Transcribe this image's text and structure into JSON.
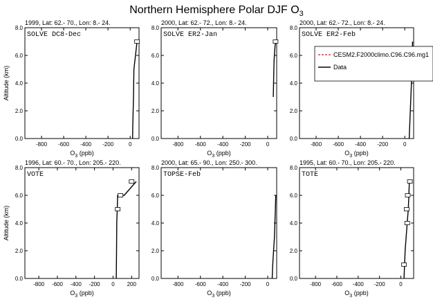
{
  "figure": {
    "title_main": "Northern Hemisphere Polar DJF O",
    "title_sub": "3"
  },
  "legend": {
    "model_label": "CESM2.F2000climo.C96.C96.mg1",
    "data_label": "Data",
    "model_color": "#ff0000",
    "data_color": "#000000"
  },
  "chart_data": [
    {
      "type": "line",
      "title": "1999, Lat: 62.- 70., Lon: 8.- 24.",
      "campaign": "SOLVE DC8-Dec",
      "xlabel_main": "O",
      "xlabel_sub": "3",
      "xlabel_unit": " (ppb)",
      "ylabel": "Altitude (km)",
      "xlim": [
        -950,
        80
      ],
      "ylim": [
        0,
        8
      ],
      "xticks": [
        "-800",
        "-600",
        "-400",
        "-200",
        "0"
      ],
      "yticks": [
        "0.0",
        "2.0",
        "4.0",
        "6.0",
        "8.0"
      ],
      "series": [
        {
          "x": [
            22,
            24,
            27,
            30,
            34,
            48,
            62
          ],
          "y": [
            0,
            1,
            2,
            3,
            5,
            6,
            7
          ]
        }
      ],
      "boxes": [
        {
          "x": 62,
          "y": 7
        }
      ]
    },
    {
      "type": "line",
      "title": "2000, Lat: 62.- 72., Lon: 8.- 24.",
      "campaign": "SOLVE ER2-Jan",
      "xlabel_main": "O",
      "xlabel_sub": "3",
      "xlabel_unit": " (ppb)",
      "ylabel": "",
      "xlim": [
        -950,
        80
      ],
      "ylim": [
        0,
        8
      ],
      "xticks": [
        "-800",
        "-600",
        "-400",
        "-200",
        "0"
      ],
      "yticks": [
        "0.0",
        "2.0",
        "4.0",
        "6.0",
        "8.0"
      ],
      "series": [
        {
          "x": [
            50,
            52,
            55,
            58,
            62,
            66,
            72
          ],
          "y": [
            3,
            4,
            5,
            5.8,
            6.3,
            6.7,
            7
          ]
        }
      ],
      "boxes": [
        {
          "x": 70,
          "y": 7
        }
      ]
    },
    {
      "type": "line",
      "title": "2000, Lat: 62.- 72., Lon: 8.- 24.",
      "campaign": "SOLVE ER2-Feb",
      "xlabel_main": "O",
      "xlabel_sub": "3",
      "xlabel_unit": " (ppb)",
      "ylabel": "",
      "xlim": [
        -950,
        80
      ],
      "ylim": [
        0,
        8
      ],
      "xticks": [
        "-800",
        "-600",
        "-400",
        "-200",
        "0"
      ],
      "yticks": [
        "0.0",
        "2.0",
        "4.0",
        "6.0",
        "8.0"
      ],
      "series": [
        {
          "x": [
            40,
            45,
            50,
            55,
            60,
            65,
            68,
            70
          ],
          "y": [
            0,
            1,
            2,
            3,
            4,
            5,
            6,
            7
          ]
        }
      ],
      "boxes": []
    },
    {
      "type": "line",
      "title": "1996, Lat: 60.- 70., Lon: 205.- 220.",
      "campaign": "VOTE",
      "xlabel_main": "O",
      "xlabel_sub": "3",
      "xlabel_unit": " (ppb)",
      "ylabel": "Altitude (km)",
      "xlim": [
        -950,
        280
      ],
      "ylim": [
        0,
        8
      ],
      "xticks": [
        "-800",
        "-600",
        "-400",
        "-200",
        "0",
        "200"
      ],
      "yticks": [
        "0.0",
        "2.0",
        "4.0",
        "6.0",
        "8.0"
      ],
      "series": [
        {
          "x": [
            35,
            38,
            40,
            45,
            50,
            120,
            250,
            250
          ],
          "y": [
            0,
            2,
            4,
            5,
            6,
            6,
            7,
            7
          ]
        }
      ],
      "boxes": [
        {
          "x": 80,
          "y": 6
        },
        {
          "x": 200,
          "y": 7
        },
        {
          "x": 50,
          "y": 5
        }
      ]
    },
    {
      "type": "line",
      "title": "2000, Lat: 65.- 90., Lon: 250.- 300.",
      "campaign": "TOPSE-Feb",
      "xlabel_main": "O",
      "xlabel_sub": "3",
      "xlabel_unit": " (ppb)",
      "ylabel": "",
      "xlim": [
        -950,
        80
      ],
      "ylim": [
        0,
        8
      ],
      "xticks": [
        "-800",
        "-600",
        "-400",
        "-200",
        "0"
      ],
      "yticks": [
        "0.0",
        "2.0",
        "4.0",
        "6.0",
        "8.0"
      ],
      "series": [
        {
          "x": [
            40,
            45,
            52,
            60,
            68,
            72
          ],
          "y": [
            0,
            1,
            2,
            3,
            5,
            6
          ]
        }
      ],
      "boxes": []
    },
    {
      "type": "line",
      "title": "1995, Lat: 60.- 70., Lon: 205.- 220.",
      "campaign": "TOTE",
      "xlabel_main": "O",
      "xlabel_sub": "3",
      "xlabel_unit": " (ppb)",
      "ylabel": "",
      "xlim": [
        -950,
        120
      ],
      "ylim": [
        0,
        8
      ],
      "xticks": [
        "-800",
        "-600",
        "-400",
        "-200",
        "0"
      ],
      "yticks": [
        "0.0",
        "2.0",
        "4.0",
        "6.0",
        "8.0"
      ],
      "series": [
        {
          "x": [
            30,
            35,
            40,
            50,
            60,
            70,
            75,
            80,
            100
          ],
          "y": [
            0,
            1,
            2,
            3,
            4,
            5,
            6,
            7,
            7
          ]
        }
      ],
      "boxes": [
        {
          "x": 60,
          "y": 4
        },
        {
          "x": 55,
          "y": 5
        },
        {
          "x": 65,
          "y": 6
        },
        {
          "x": 85,
          "y": 7
        },
        {
          "x": 30,
          "y": 1
        }
      ]
    }
  ]
}
